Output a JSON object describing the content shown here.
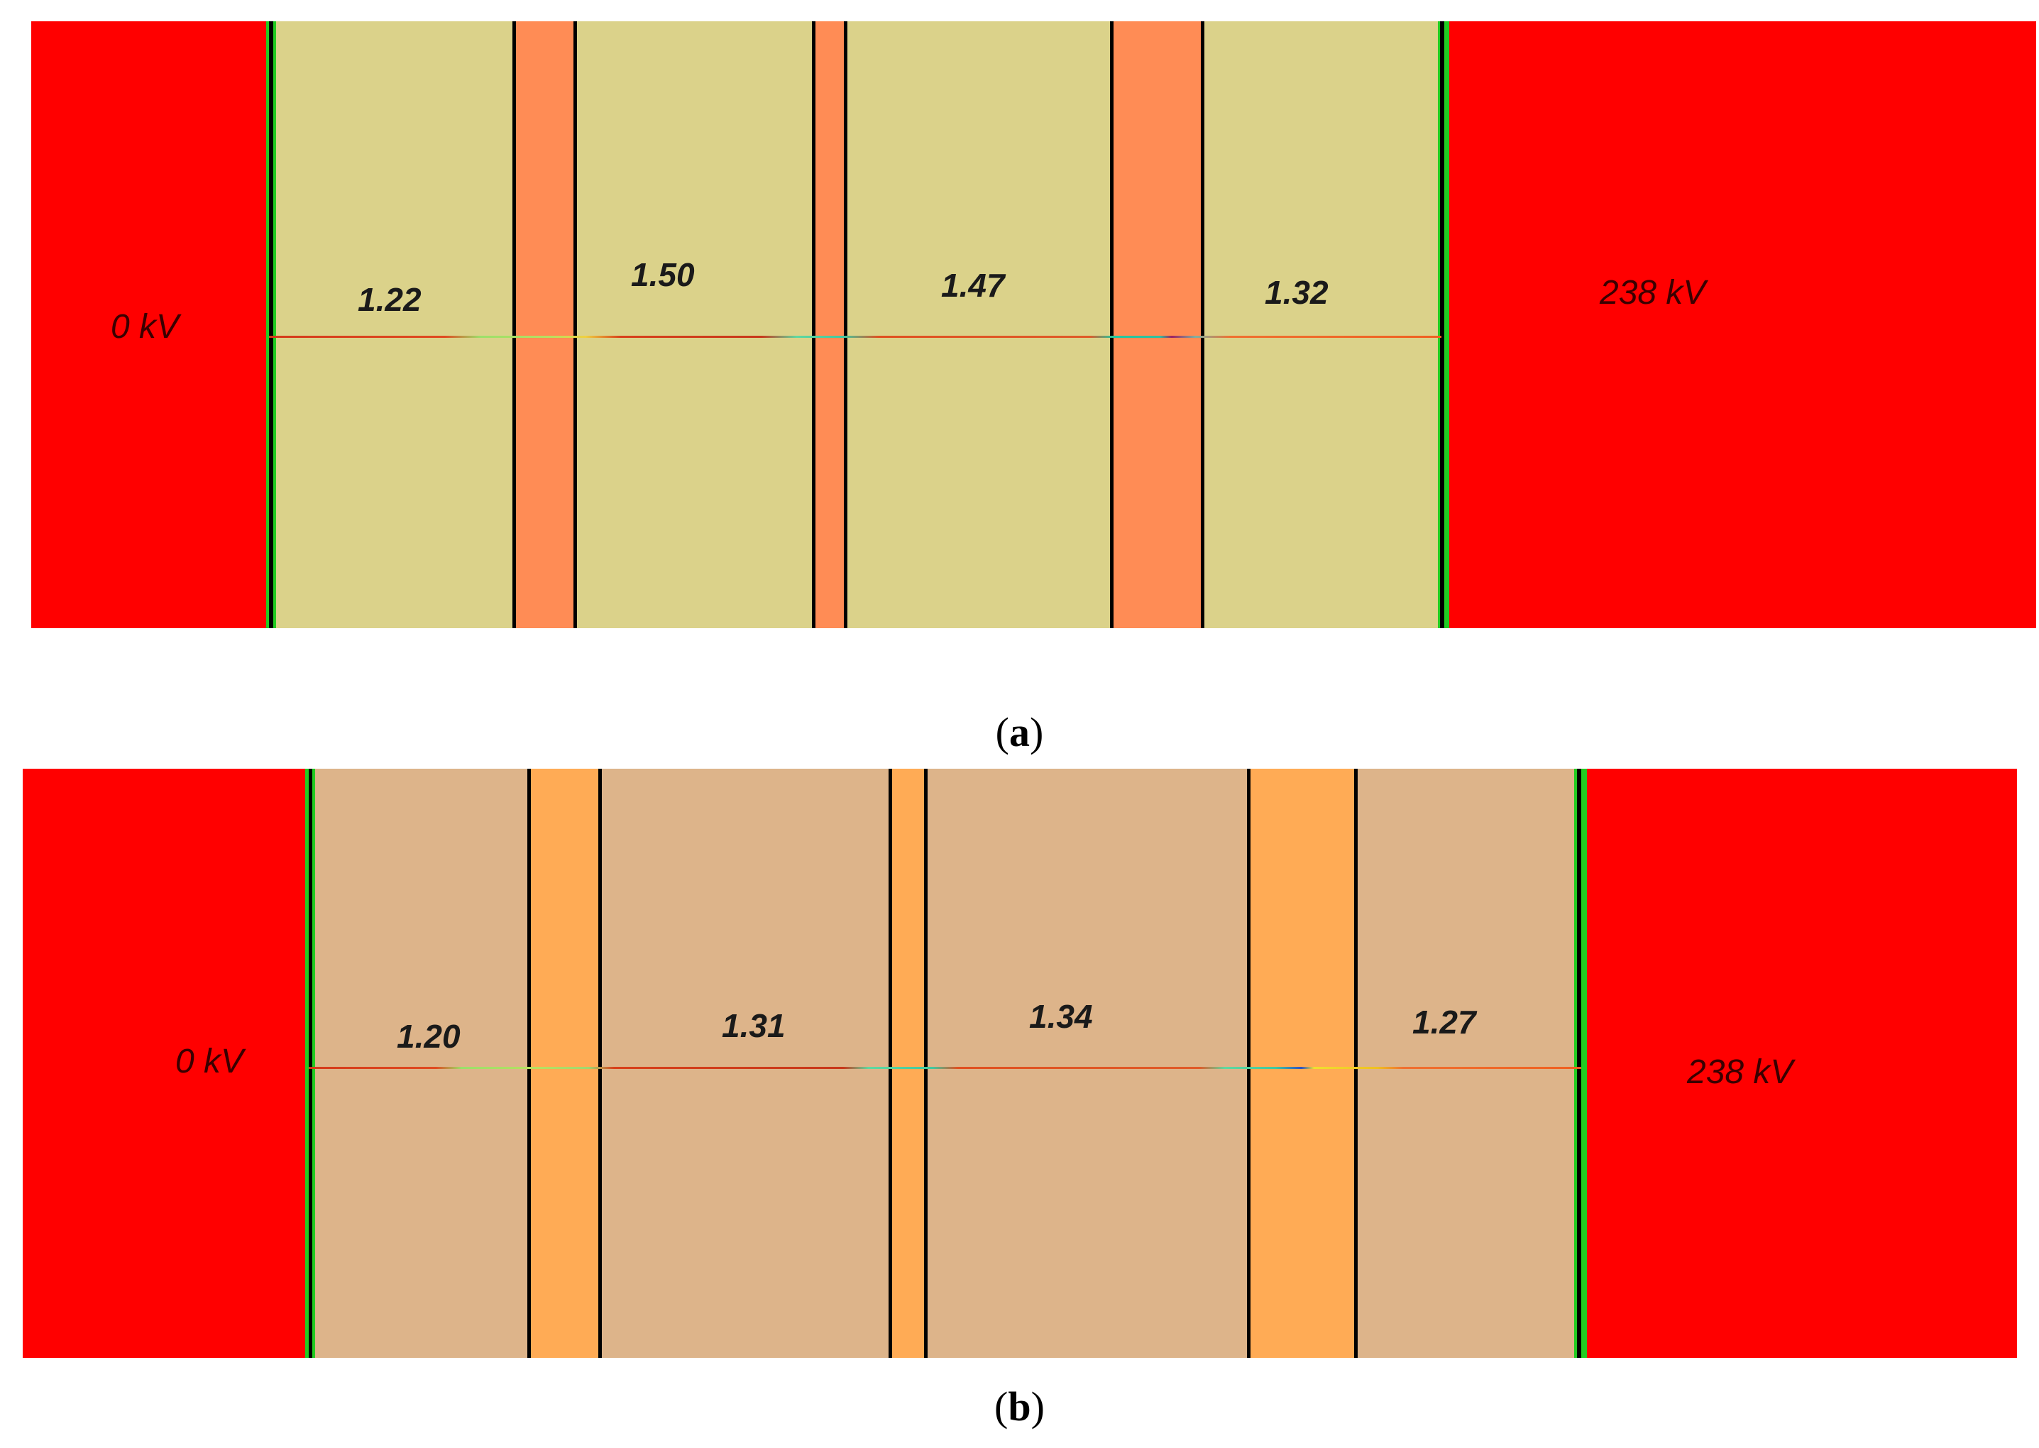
{
  "colors": {
    "electrode": "#ff0000",
    "separator_green": "#22cc22",
    "panel_a_insulation": "#dbd28a",
    "panel_a_gap": "#ff8c55",
    "panel_b_insulation": "#ddb48a",
    "panel_b_gap": "#ffab55"
  },
  "panel_a": {
    "caption": "a",
    "left_voltage": "0 kV",
    "right_voltage": "238 kV",
    "regions": [
      {
        "label": "1.22",
        "value": 1.22
      },
      {
        "label": "1.50",
        "value": 1.5
      },
      {
        "label": "1.47",
        "value": 1.47
      },
      {
        "label": "1.32",
        "value": 1.32
      }
    ]
  },
  "panel_b": {
    "caption": "b",
    "left_voltage": "0 kV",
    "right_voltage": "238 kV",
    "regions": [
      {
        "label": "1.20",
        "value": 1.2
      },
      {
        "label": "1.31",
        "value": 1.31
      },
      {
        "label": "1.34",
        "value": 1.34
      },
      {
        "label": "1.27",
        "value": 1.27
      }
    ]
  }
}
